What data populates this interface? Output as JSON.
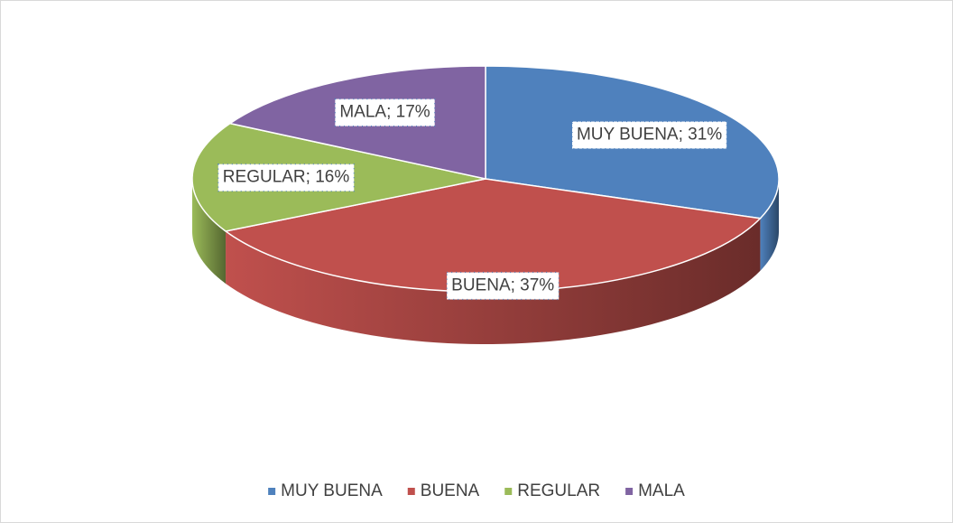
{
  "chart_data": {
    "type": "pie",
    "categories": [
      "MUY BUENA",
      "BUENA",
      "REGULAR",
      "MALA"
    ],
    "values": [
      31,
      37,
      16,
      17
    ],
    "value_labels": [
      "MUY BUENA; 31%",
      "BUENA; 37%",
      "REGULAR; 16%",
      "MALA; 17%"
    ],
    "colors": [
      "#4f81bd",
      "#c0504d",
      "#9bbb59",
      "#8064a2"
    ],
    "legend": "bottom"
  }
}
